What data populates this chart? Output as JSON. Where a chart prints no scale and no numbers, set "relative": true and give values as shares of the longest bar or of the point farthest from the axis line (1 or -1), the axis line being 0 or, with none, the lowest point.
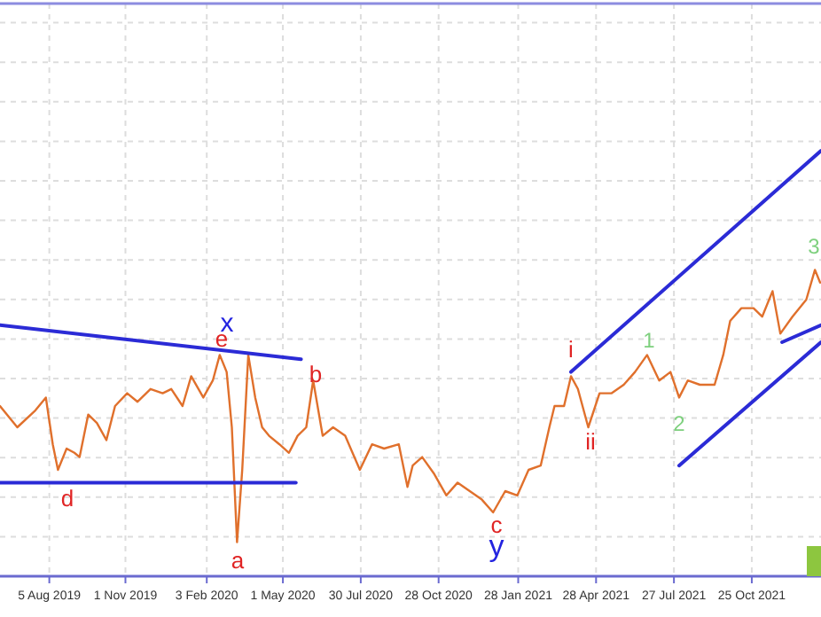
{
  "chart_data": {
    "type": "line",
    "relative": true,
    "grid": true,
    "line_style": "solid",
    "marker": "none",
    "xlim": [
      "2019-06-09",
      "2022-01-13"
    ],
    "xticks": [
      {
        "value": "2019-08-05",
        "label": "5 Aug 2019"
      },
      {
        "value": "2019-11-01",
        "label": "1 Nov 2019"
      },
      {
        "value": "2020-02-03",
        "label": "3 Feb 2020"
      },
      {
        "value": "2020-05-01",
        "label": "1 May 2020"
      },
      {
        "value": "2020-07-30",
        "label": "30 Jul 2020"
      },
      {
        "value": "2020-10-28",
        "label": "28 Oct 2020"
      },
      {
        "value": "2021-01-28",
        "label": "28 Jan 2021"
      },
      {
        "value": "2021-04-28",
        "label": "28 Apr 2021"
      },
      {
        "value": "2021-07-27",
        "label": "27 Jul 2021"
      },
      {
        "value": "2021-10-25",
        "label": "25 Oct 2021"
      }
    ],
    "series": [
      {
        "color": "#e0702c",
        "x": [
          "2019-06-09",
          "2019-06-29",
          "2019-07-20",
          "2019-08-01",
          "2019-08-09",
          "2019-08-15",
          "2019-08-25",
          "2019-09-03",
          "2019-09-09",
          "2019-09-19",
          "2019-09-29",
          "2019-10-10",
          "2019-10-20",
          "2019-11-03",
          "2019-11-15",
          "2019-11-30",
          "2019-12-14",
          "2019-12-24",
          "2020-01-06",
          "2020-01-16",
          "2020-01-30",
          "2020-02-10",
          "2020-02-18",
          "2020-02-26",
          "2020-03-03",
          "2020-03-09",
          "2020-03-15",
          "2020-03-22",
          "2020-03-30",
          "2020-04-07",
          "2020-04-15",
          "2020-04-27",
          "2020-05-08",
          "2020-05-18",
          "2020-05-28",
          "2020-06-05",
          "2020-06-16",
          "2020-06-28",
          "2020-07-12",
          "2020-07-29",
          "2020-08-12",
          "2020-08-26",
          "2020-09-12",
          "2020-09-22",
          "2020-09-28",
          "2020-10-09",
          "2020-10-23",
          "2020-11-06",
          "2020-11-19",
          "2020-12-03",
          "2020-12-17",
          "2020-12-30",
          "2021-01-13",
          "2021-01-27",
          "2021-02-09",
          "2021-02-23",
          "2021-03-05",
          "2021-03-11",
          "2021-03-22",
          "2021-03-30",
          "2021-04-07",
          "2021-04-19",
          "2021-05-02",
          "2021-05-16",
          "2021-05-30",
          "2021-06-12",
          "2021-06-26",
          "2021-07-10",
          "2021-07-23",
          "2021-08-02",
          "2021-08-12",
          "2021-08-26",
          "2021-09-12",
          "2021-09-22",
          "2021-09-30",
          "2021-10-13",
          "2021-10-27",
          "2021-11-06",
          "2021-11-18",
          "2021-11-27",
          "2021-12-11",
          "2021-12-27",
          "2022-01-06",
          "2022-01-12"
        ],
        "values": [
          0.4,
          0.35,
          0.39,
          0.42,
          0.31,
          0.25,
          0.3,
          0.29,
          0.28,
          0.38,
          0.36,
          0.32,
          0.4,
          0.43,
          0.41,
          0.44,
          0.43,
          0.44,
          0.4,
          0.47,
          0.42,
          0.46,
          0.52,
          0.48,
          0.35,
          0.08,
          0.25,
          0.52,
          0.42,
          0.35,
          0.33,
          0.31,
          0.29,
          0.33,
          0.35,
          0.46,
          0.33,
          0.35,
          0.33,
          0.25,
          0.31,
          0.3,
          0.31,
          0.21,
          0.26,
          0.28,
          0.24,
          0.19,
          0.22,
          0.2,
          0.18,
          0.15,
          0.2,
          0.19,
          0.25,
          0.26,
          0.35,
          0.4,
          0.4,
          0.47,
          0.44,
          0.35,
          0.43,
          0.43,
          0.45,
          0.48,
          0.52,
          0.46,
          0.48,
          0.42,
          0.46,
          0.45,
          0.45,
          0.52,
          0.6,
          0.63,
          0.63,
          0.61,
          0.67,
          0.57,
          0.61,
          0.65,
          0.72,
          0.69
        ]
      },
      {
        "color": "#2b2bd6",
        "x": [
          "2019-06-09",
          "2020-05-22"
        ],
        "values": [
          0.59,
          0.51
        ]
      },
      {
        "color": "#2b2bd6",
        "x": [
          "2019-06-09",
          "2020-05-16"
        ],
        "values": [
          0.22,
          0.22
        ]
      },
      {
        "color": "#2b2bd6",
        "x": [
          "2021-03-30",
          "2022-01-13"
        ],
        "values": [
          0.48,
          1
        ]
      },
      {
        "color": "#2b2bd6",
        "x": [
          "2021-08-02",
          "2022-01-13"
        ],
        "values": [
          0.26,
          0.55
        ]
      },
      {
        "color": "#2b2bd6",
        "x": [
          "2021-11-29",
          "2022-01-13"
        ],
        "values": [
          0.55,
          0.59
        ]
      }
    ],
    "annotations": [
      "x",
      "e",
      "a",
      "b",
      "d",
      "c",
      "y",
      "i",
      "ii",
      "1",
      "2",
      "3"
    ]
  }
}
